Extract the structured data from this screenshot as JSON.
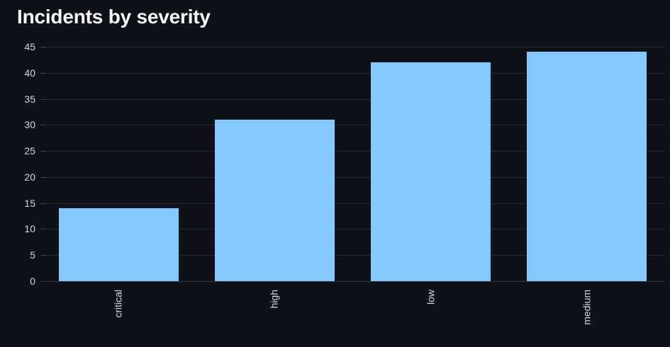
{
  "chart": {
    "title": "Incidents by severity"
  },
  "chart_data": {
    "type": "bar",
    "title": "Incidents by severity",
    "categories": [
      "critical",
      "high",
      "low",
      "medium"
    ],
    "values": [
      14,
      31,
      42,
      44
    ],
    "xlabel": "",
    "ylabel": "",
    "ylim": [
      0,
      45
    ],
    "yticks": [
      0,
      5,
      10,
      15,
      20,
      25,
      30,
      35,
      40,
      45
    ],
    "x_label_rotation": -90,
    "grid": "horizontal",
    "legend": "none",
    "colors": {
      "background": "#0e1117",
      "bar": "#83c9ff",
      "title_text": "#fafafa",
      "axis_text": "#d5d9de",
      "gridline": "#262b34",
      "tick_mark": "#454b55",
      "axis_line": "#31363f"
    }
  }
}
